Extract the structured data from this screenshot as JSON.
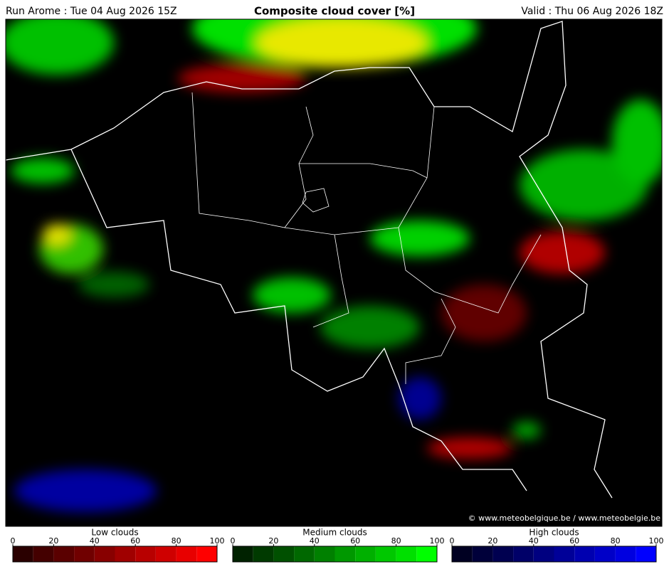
{
  "header": {
    "run": "Run Arome : Tue 04 Aug 2026 15Z",
    "title": "Composite cloud cover [%]",
    "valid": "Valid : Thu 06 Aug 2026 18Z"
  },
  "credit": "© www.meteobelgique.be / www.meteobelgie.be",
  "legends": [
    {
      "label": "Low clouds",
      "ticks": [
        0,
        20,
        40,
        60,
        80,
        100
      ],
      "colors": [
        "#2a0000",
        "#440000",
        "#5a0000",
        "#700000",
        "#880000",
        "#a00000",
        "#b80000",
        "#cf0000",
        "#e80000",
        "#ff0000"
      ]
    },
    {
      "label": "Medium clouds",
      "ticks": [
        0,
        20,
        40,
        60,
        80,
        100
      ],
      "colors": [
        "#002200",
        "#003a00",
        "#005000",
        "#006800",
        "#008000",
        "#009800",
        "#00b000",
        "#00c800",
        "#00e000",
        "#00ff00"
      ]
    },
    {
      "label": "High clouds",
      "ticks": [
        0,
        20,
        40,
        60,
        80,
        100
      ],
      "colors": [
        "#000022",
        "#00003a",
        "#000050",
        "#000068",
        "#000080",
        "#000098",
        "#0000b0",
        "#0000c8",
        "#0000e0",
        "#0000ff"
      ]
    }
  ]
}
